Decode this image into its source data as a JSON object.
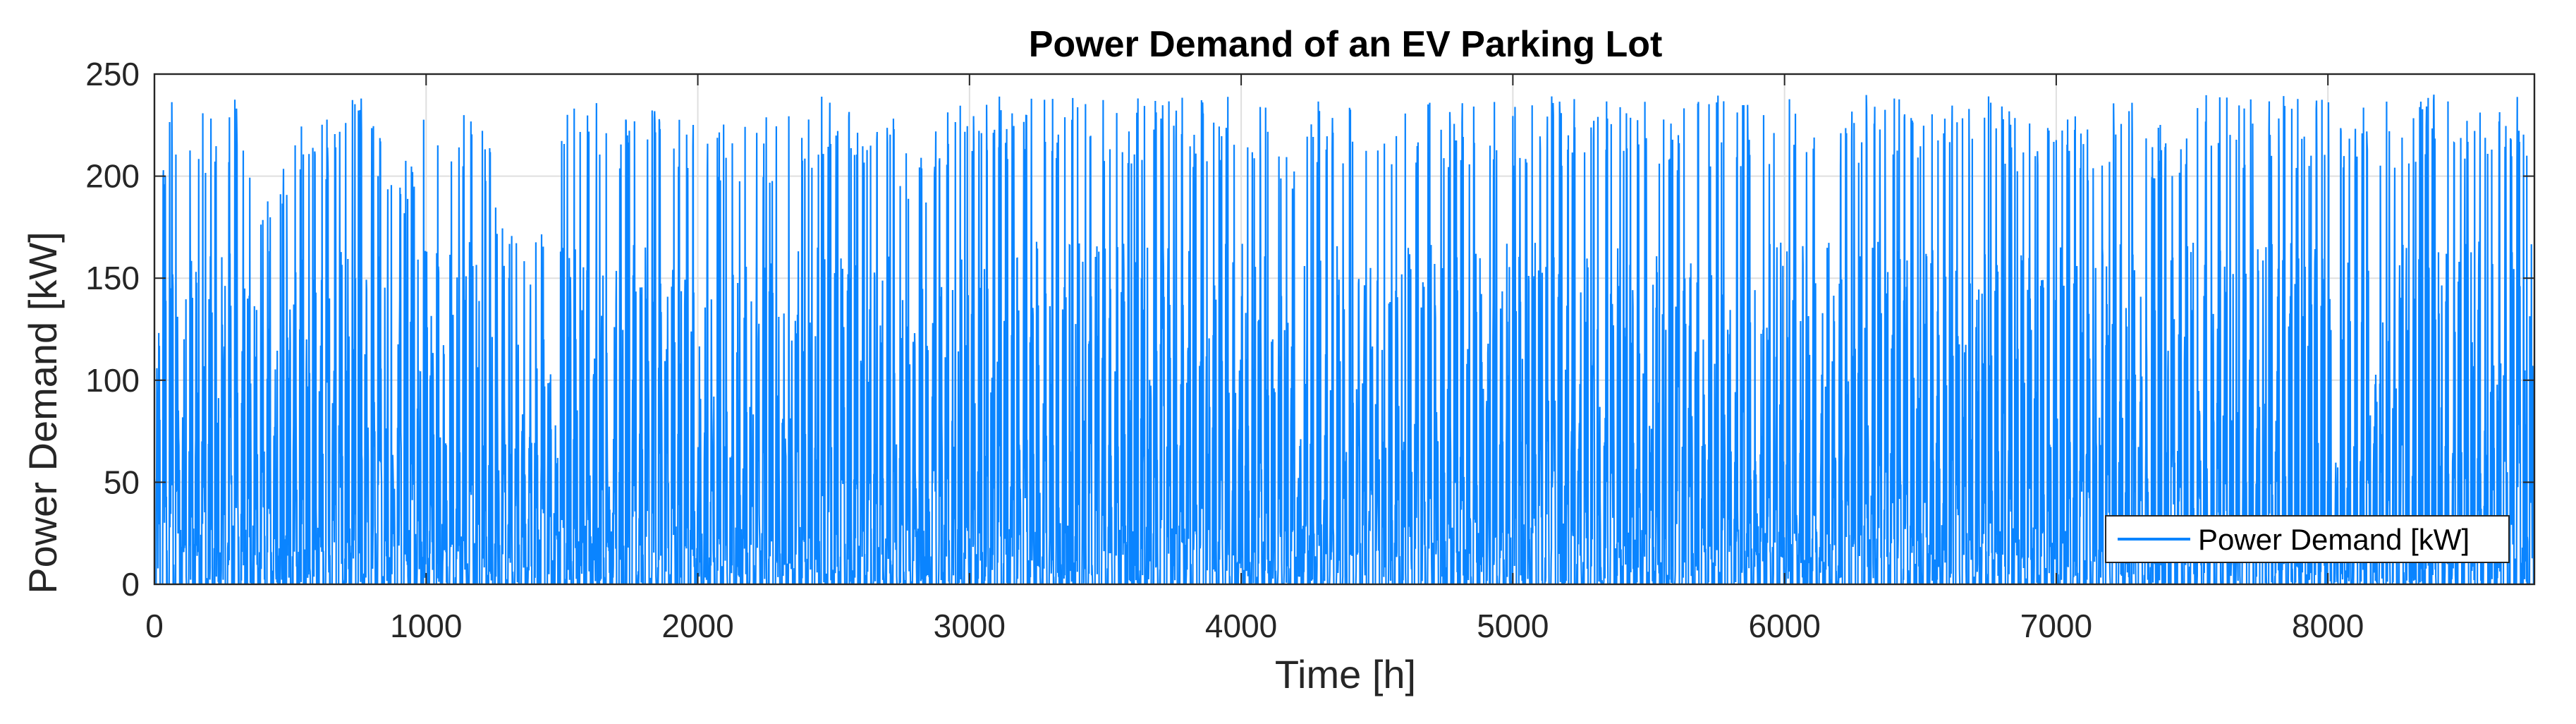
{
  "chart_data": {
    "type": "line",
    "title": "Power Demand of an EV Parking Lot",
    "xlabel": "Time [h]",
    "ylabel": "Power Demand [kW]",
    "xlim": [
      0,
      8760
    ],
    "ylim": [
      0,
      250
    ],
    "xticks": [
      0,
      1000,
      2000,
      3000,
      4000,
      5000,
      6000,
      7000,
      8000
    ],
    "yticks": [
      0,
      50,
      100,
      150,
      200,
      250
    ],
    "xtick_labels": [
      "0",
      "1000",
      "2000",
      "3000",
      "4000",
      "5000",
      "6000",
      "7000",
      "8000"
    ],
    "ytick_labels": [
      "0",
      "50",
      "100",
      "150",
      "200",
      "250"
    ],
    "grid": true,
    "legend": {
      "placement": "bottom-right",
      "entries": [
        "Power Demand [kW]"
      ]
    },
    "series": [
      {
        "name": "Power Demand [kW]",
        "color": "#0a84ff",
        "sampling": "hourly",
        "x_start": 0,
        "x_step": 1,
        "n_points": 8760,
        "peak_value": 240,
        "baseline_value": 0,
        "max_envelope_x": [
          0,
          50,
          100,
          200,
          300,
          400,
          500,
          600,
          700,
          800,
          900,
          1000,
          1100,
          1200,
          1300,
          1400,
          1500,
          1600,
          1700,
          1800,
          1900,
          2000,
          2100,
          2200,
          2300,
          2400,
          2500,
          2600,
          2700,
          2800,
          2900,
          3000,
          3100,
          3200,
          3300,
          3400,
          3500,
          3600,
          3700,
          3800,
          3900,
          4000,
          4100,
          4200,
          4300,
          4400,
          4500,
          4600,
          4700,
          4800,
          4900,
          5000,
          5100,
          5200,
          5300,
          5400,
          5500,
          5600,
          5700,
          5800,
          5900,
          6000,
          6100,
          6200,
          6300,
          6400,
          6500,
          6600,
          6700,
          6800,
          6900,
          7000,
          7100,
          7200,
          7300,
          7400,
          7500,
          7600,
          7700,
          7800,
          7900,
          8000,
          8100,
          8200,
          8300,
          8400,
          8500,
          8600,
          8700,
          8760
        ],
        "max_envelope_y": [
          160,
          240,
          235,
          230,
          240,
          180,
          230,
          225,
          240,
          240,
          200,
          240,
          240,
          240,
          175,
          170,
          240,
          240,
          235,
          240,
          225,
          240,
          225,
          235,
          225,
          240,
          240,
          230,
          240,
          205,
          230,
          240,
          240,
          240,
          240,
          240,
          240,
          240,
          240,
          240,
          240,
          240,
          240,
          225,
          240,
          240,
          240,
          240,
          240,
          240,
          240,
          240,
          240,
          240,
          240,
          240,
          240,
          235,
          240,
          240,
          240,
          240,
          240,
          240,
          240,
          240,
          240,
          240,
          240,
          240,
          235,
          240,
          230,
          240,
          235,
          225,
          240,
          240,
          240,
          240,
          240,
          240,
          240,
          240,
          240,
          240,
          240,
          240,
          240,
          185
        ]
      }
    ]
  }
}
